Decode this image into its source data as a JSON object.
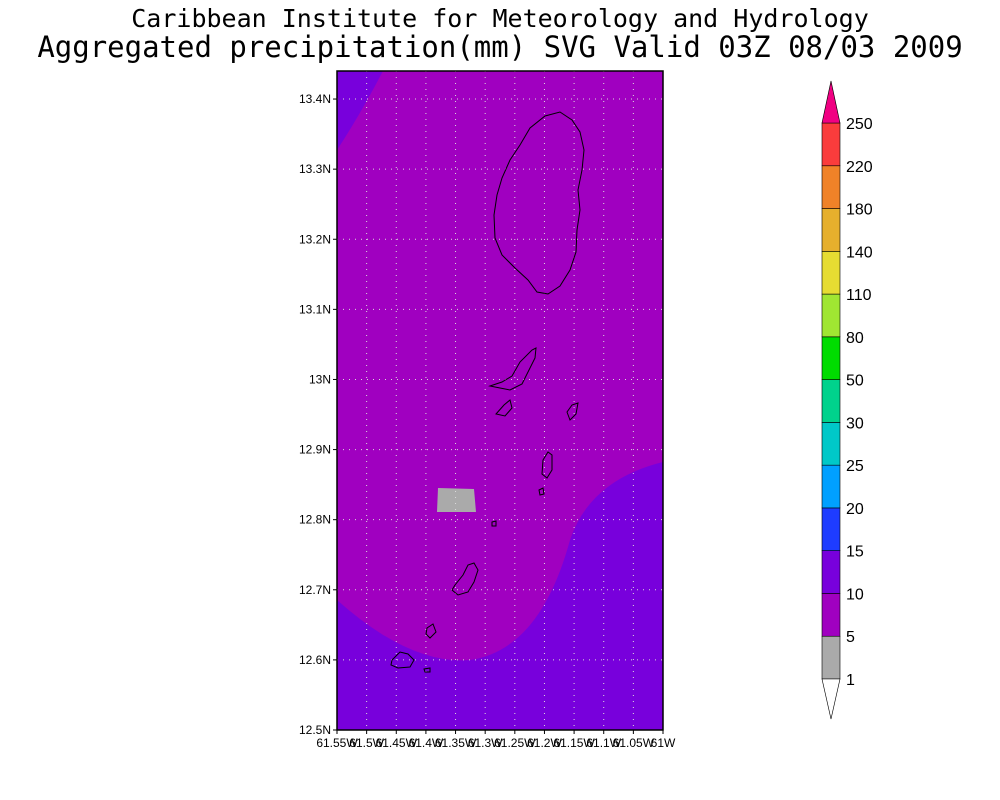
{
  "header": {
    "institute": "Caribbean Institute for Meteorology and Hydrology",
    "product": "Aggregated precipitation(mm) SVG Valid 03Z 08/03 2009"
  },
  "map": {
    "lat_range": [
      12.5,
      13.44
    ],
    "lon_range": [
      -61.55,
      -61.0
    ],
    "lat_ticks": [
      {
        "value": 13.4,
        "label": "13.4N"
      },
      {
        "value": 13.3,
        "label": "13.3N"
      },
      {
        "value": 13.2,
        "label": "13.2N"
      },
      {
        "value": 13.1,
        "label": "13.1N"
      },
      {
        "value": 13.0,
        "label": "13N"
      },
      {
        "value": 12.9,
        "label": "12.9N"
      },
      {
        "value": 12.8,
        "label": "12.8N"
      },
      {
        "value": 12.7,
        "label": "12.7N"
      },
      {
        "value": 12.6,
        "label": "12.6N"
      },
      {
        "value": 12.5,
        "label": "12.5N"
      }
    ],
    "lon_ticks": [
      {
        "value": -61.55,
        "label": "61.55W"
      },
      {
        "value": -61.5,
        "label": "61.5W"
      },
      {
        "value": -61.45,
        "label": "61.45W"
      },
      {
        "value": -61.4,
        "label": "61.4W"
      },
      {
        "value": -61.35,
        "label": "61.35W"
      },
      {
        "value": -61.3,
        "label": "61.3W"
      },
      {
        "value": -61.25,
        "label": "61.25W"
      },
      {
        "value": -61.2,
        "label": "61.2W"
      },
      {
        "value": -61.15,
        "label": "61.15W"
      },
      {
        "value": -61.1,
        "label": "61.1W"
      },
      {
        "value": -61.05,
        "label": "61.05W"
      },
      {
        "value": -61.0,
        "label": "61W"
      }
    ],
    "field_colors": {
      "band_5_10": "#a000c0",
      "band_10_15": "#7800dc",
      "band_1_5": "#aaaaaa",
      "coastline": "#000000",
      "grid": "#dcdcdc"
    }
  },
  "colorbar": {
    "levels": [
      {
        "label": "1",
        "color": "#aaaaaa"
      },
      {
        "label": "5",
        "color": "#a000c0"
      },
      {
        "label": "10",
        "color": "#7800dc"
      },
      {
        "label": "15",
        "color": "#1e3cff"
      },
      {
        "label": "20",
        "color": "#00a0ff"
      },
      {
        "label": "25",
        "color": "#00c8c8"
      },
      {
        "label": "30",
        "color": "#00d28c"
      },
      {
        "label": "50",
        "color": "#00dc00"
      },
      {
        "label": "80",
        "color": "#a0e632"
      },
      {
        "label": "110",
        "color": "#e6dc32"
      },
      {
        "label": "140",
        "color": "#e6af2d"
      },
      {
        "label": "180",
        "color": "#f08228"
      },
      {
        "label": "220",
        "color": "#fa3c3c"
      },
      {
        "label": "250",
        "color": "#f00082"
      }
    ],
    "low_color": "#ffffff",
    "high_color": "#f00082"
  }
}
